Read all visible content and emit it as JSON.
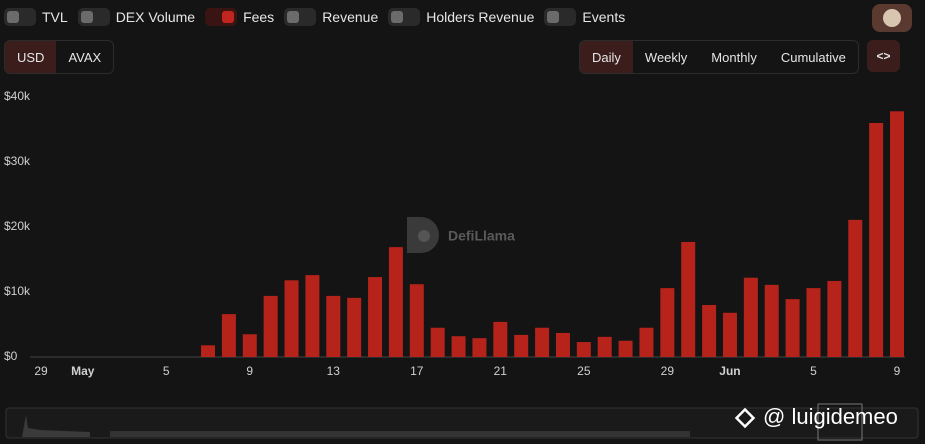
{
  "toggles": [
    {
      "label": "TVL",
      "on": false
    },
    {
      "label": "DEX Volume",
      "on": false
    },
    {
      "label": "Fees",
      "on": true
    },
    {
      "label": "Revenue",
      "on": false
    },
    {
      "label": "Holders Revenue",
      "on": false
    },
    {
      "label": "Events",
      "on": false
    }
  ],
  "currency_buttons": [
    {
      "label": "USD",
      "active": true
    },
    {
      "label": "AVAX",
      "active": false
    }
  ],
  "period_buttons": [
    {
      "label": "Daily",
      "active": true
    },
    {
      "label": "Weekly",
      "active": false
    },
    {
      "label": "Monthly",
      "active": false
    },
    {
      "label": "Cumulative",
      "active": false
    }
  ],
  "embed_button": "<>",
  "watermark": "DefiLlama",
  "handle": "@ luigidemeo",
  "chart_data": {
    "type": "bar",
    "color": "#b5231b",
    "categories": [
      "29",
      null,
      "May",
      null,
      null,
      null,
      "5",
      null,
      null,
      null,
      "9",
      null,
      null,
      null,
      "13",
      null,
      null,
      null,
      "17",
      null,
      null,
      null,
      "21",
      null,
      null,
      null,
      "25",
      null,
      null,
      null,
      "29",
      null,
      null,
      "Jun",
      null,
      null,
      null,
      "5",
      null,
      null,
      null,
      "9"
    ],
    "values": [
      null,
      null,
      null,
      null,
      null,
      null,
      null,
      null,
      1800,
      6600,
      3500,
      9400,
      11800,
      12600,
      9400,
      9100,
      12300,
      16900,
      11200,
      4500,
      3200,
      2900,
      5400,
      3400,
      4500,
      3700,
      2300,
      3100,
      2500,
      4500,
      10600,
      17700,
      8000,
      6800,
      12200,
      11100,
      8900,
      10600,
      11700,
      21100,
      36000,
      37800
    ],
    "ylim": [
      0,
      40000
    ],
    "yticks": [
      {
        "value": 0,
        "label": "$0"
      },
      {
        "value": 10000,
        "label": "$10k"
      },
      {
        "value": 20000,
        "label": "$20k"
      },
      {
        "value": 30000,
        "label": "$30k"
      },
      {
        "value": 40000,
        "label": "$40k"
      }
    ]
  }
}
